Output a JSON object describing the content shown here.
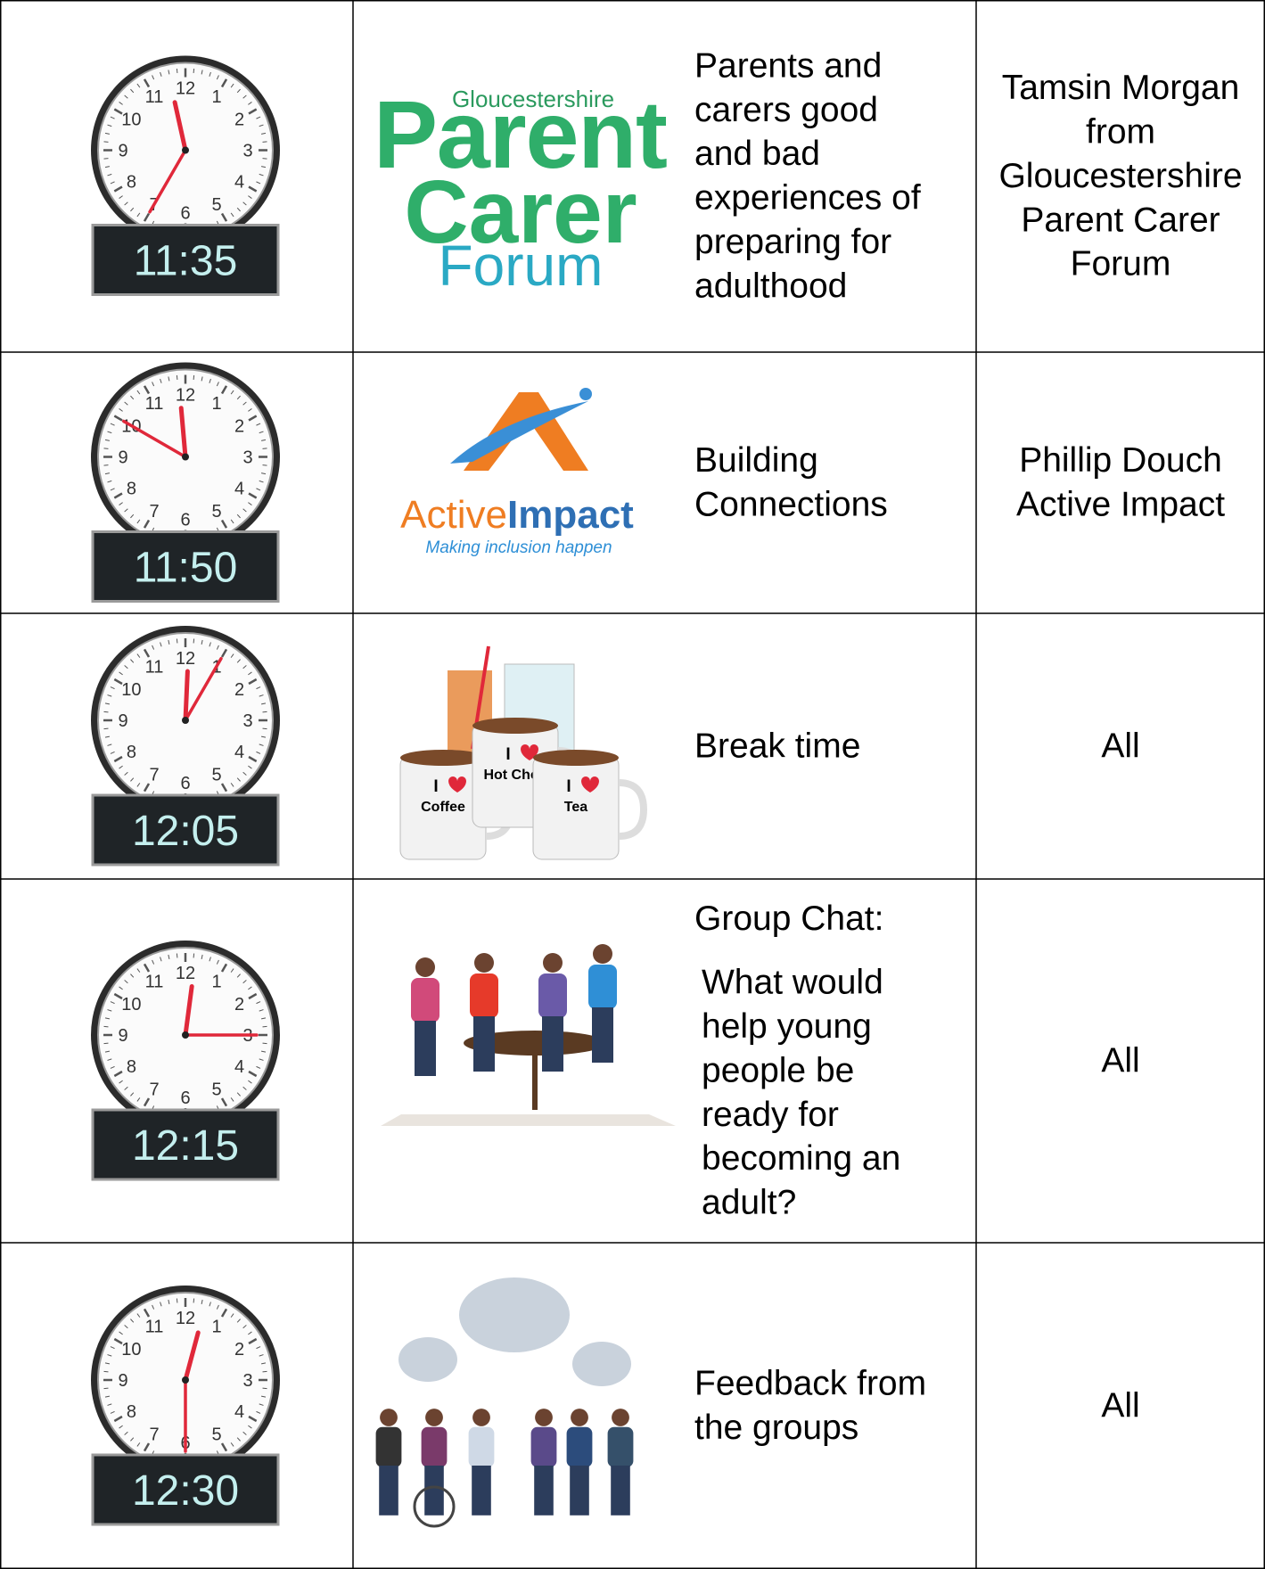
{
  "clock_numerals": [
    "12",
    "1",
    "2",
    "3",
    "4",
    "5",
    "6",
    "7",
    "8",
    "9",
    "10",
    "11"
  ],
  "rows": [
    {
      "time": "11:35",
      "logo_lines": [
        "Gloucestershire",
        "Parent",
        "Carer",
        "Forum"
      ],
      "description": [
        [
          "Parents and",
          "carers good",
          "and bad",
          "experiences of",
          "preparing for",
          "adulthood"
        ]
      ],
      "presenter": [
        "Tamsin Morgan",
        "from",
        "Gloucestershire",
        "Parent Carer",
        "Forum"
      ]
    },
    {
      "time": "11:50",
      "logo": {
        "word1": "Active",
        "word2": "Impact",
        "tagline": "Making inclusion happen"
      },
      "description": [
        [
          "Building",
          "Connections"
        ]
      ],
      "presenter": [
        "Phillip Douch",
        "Active Impact"
      ]
    },
    {
      "time": "12:05",
      "mug_labels": [
        [
          "I",
          "Coffee"
        ],
        [
          "I",
          "Hot Choc"
        ],
        [
          "I",
          "Tea"
        ]
      ],
      "description": [
        [
          "Break time"
        ]
      ],
      "presenter": [
        "All"
      ]
    },
    {
      "time": "12:15",
      "description": [
        [
          "Group Chat:"
        ],
        [
          "What would",
          "help young",
          "people be",
          "ready for",
          "becoming an",
          "adult?"
        ]
      ],
      "presenter": [
        "All"
      ]
    },
    {
      "time": "12:30",
      "description": [
        [
          "Feedback from",
          "the groups"
        ]
      ],
      "presenter": [
        "All"
      ]
    }
  ]
}
